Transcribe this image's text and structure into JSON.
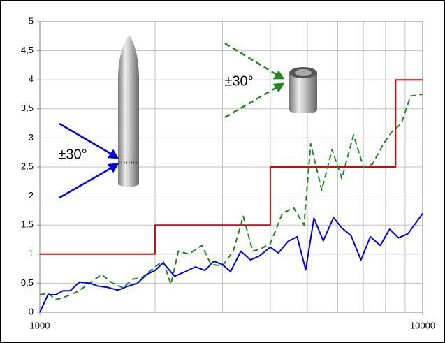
{
  "chart_data": {
    "type": "line",
    "annotations": [
      "±30°",
      "±30°"
    ],
    "xlim": [
      1000,
      10000
    ],
    "xticks": [
      1000,
      10000
    ],
    "xlog": true,
    "xgrid": [
      2000,
      3000,
      4000,
      5000,
      6000,
      7000,
      8000,
      9000
    ],
    "ylim": [
      0,
      5
    ],
    "yticks": [
      0,
      {
        "value": 0.5,
        "label": "0,5"
      },
      1,
      {
        "value": 1.5,
        "label": "1,5"
      },
      2,
      {
        "value": 2.5,
        "label": "2,5"
      },
      3,
      {
        "value": 3.5,
        "label": "3,5"
      },
      4,
      {
        "value": 4.5,
        "label": "4,5"
      },
      5
    ],
    "grid": true,
    "series": [
      {
        "color": "#e00000",
        "dashed": false,
        "x": [
          1000,
          2000,
          2000,
          4000,
          4000,
          8500,
          8500,
          10000
        ],
        "values": [
          1,
          1,
          1.5,
          1.5,
          2.5,
          2.5,
          4,
          4
        ]
      },
      {
        "color": "#1a8a1a",
        "dashed": true,
        "x": [
          1000,
          1050,
          1100,
          1150,
          1250,
          1350,
          1450,
          1550,
          1650,
          1750,
          1850,
          2000,
          2100,
          2200,
          2300,
          2450,
          2650,
          2800,
          3000,
          3200,
          3400,
          3600,
          3800,
          4000,
          4300,
          4600,
          4900,
          5100,
          5450,
          5800,
          6150,
          6600,
          7000,
          7400,
          7900,
          8300,
          8800,
          9300,
          10000
        ],
        "values": [
          0.3,
          0.33,
          0.22,
          0.25,
          0.35,
          0.5,
          0.65,
          0.5,
          0.42,
          0.57,
          0.6,
          0.78,
          0.88,
          0.48,
          1.05,
          1.0,
          1.15,
          0.82,
          0.8,
          1.05,
          1.65,
          1.05,
          1.1,
          1.18,
          1.7,
          1.8,
          1.5,
          2.9,
          2.1,
          2.8,
          2.3,
          3.05,
          2.5,
          2.55,
          2.9,
          3.1,
          3.25,
          3.72,
          3.75
        ]
      },
      {
        "color": "#0000e0",
        "dashed": false,
        "x": [
          1000,
          1050,
          1100,
          1150,
          1200,
          1270,
          1350,
          1420,
          1500,
          1600,
          1700,
          1800,
          1900,
          2000,
          2100,
          2250,
          2400,
          2550,
          2700,
          2850,
          3000,
          3150,
          3350,
          3550,
          3750,
          4000,
          4200,
          4450,
          4700,
          4950,
          5200,
          5500,
          5850,
          6150,
          6500,
          6900,
          7300,
          7750,
          8200,
          8650,
          9150,
          10000
        ],
        "values": [
          0,
          0.3,
          0.3,
          0.37,
          0.37,
          0.52,
          0.5,
          0.45,
          0.43,
          0.38,
          0.45,
          0.5,
          0.65,
          0.72,
          0.85,
          0.62,
          0.7,
          0.78,
          0.72,
          0.88,
          0.82,
          0.7,
          1.05,
          0.9,
          0.97,
          1.12,
          1.02,
          1.22,
          1.3,
          0.73,
          1.62,
          1.23,
          1.63,
          1.45,
          1.32,
          0.9,
          1.3,
          1.15,
          1.43,
          1.28,
          1.35,
          1.7
        ]
      }
    ]
  }
}
